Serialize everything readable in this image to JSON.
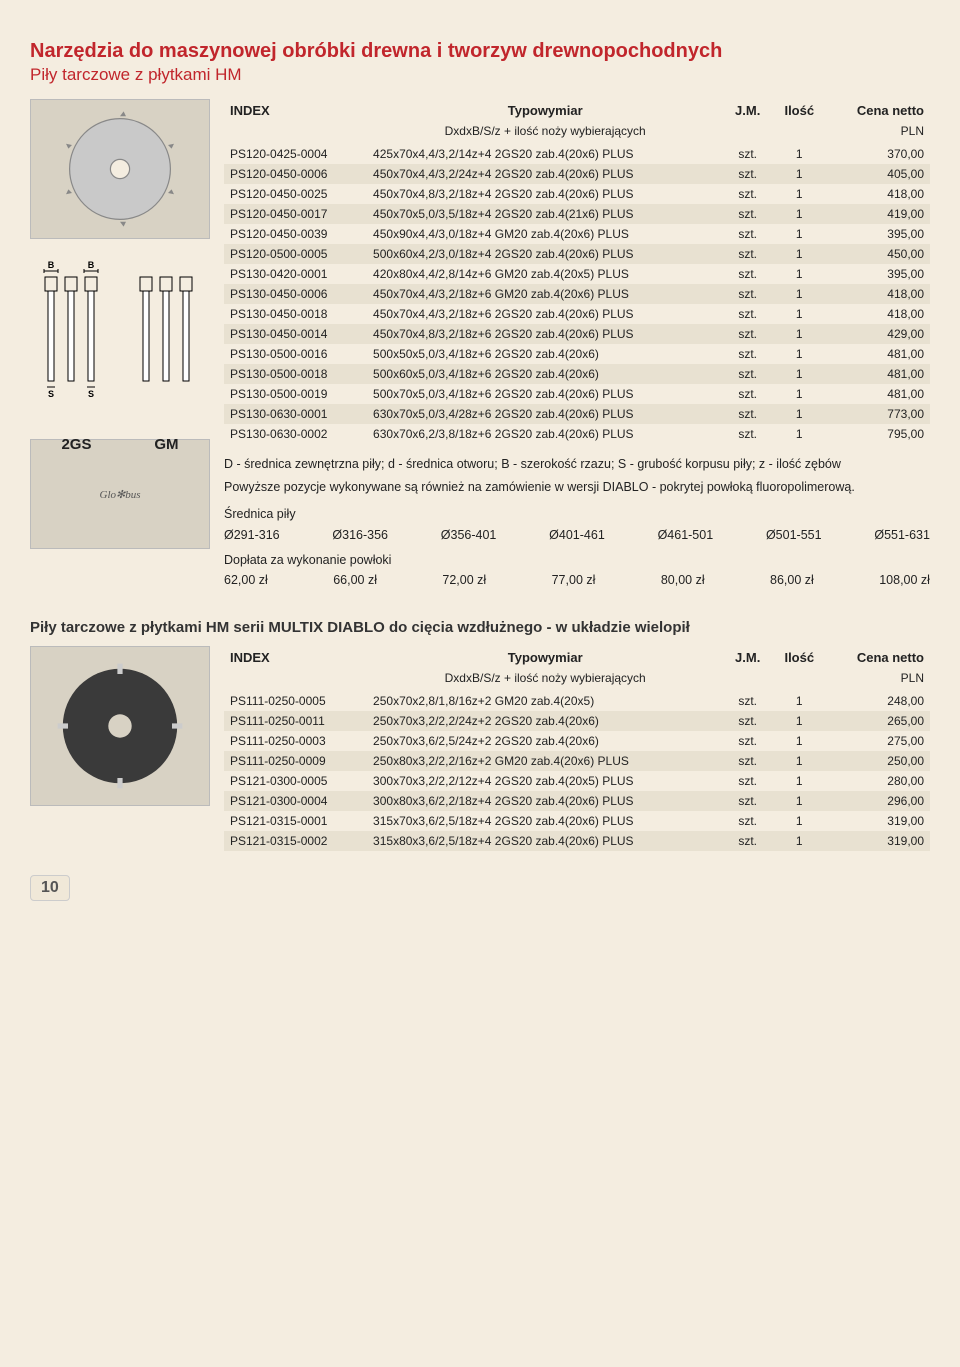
{
  "header": {
    "title": "Narzędzia do maszynowej obróbki drewna i tworzyw drewnopochodnych",
    "subtitle": "Piły tarczowe z płytkami HM"
  },
  "colors": {
    "heading": "#c1262c",
    "row_alt": "#e8e1d1",
    "page_bg": "#f4ede0"
  },
  "table_headers": {
    "index": "INDEX",
    "type": "Typowymiar",
    "jm": "J.M.",
    "qty": "Ilość",
    "price": "Cena netto",
    "sub_type": "DxdxB/S/z + ilość noży wybierających",
    "sub_price": "PLN"
  },
  "diagram": {
    "left_label": "2GS",
    "right_label": "GM",
    "b": "B",
    "s": "S"
  },
  "table1": {
    "rows": [
      {
        "idx": "PS120-0425-0004",
        "spec": "425x70x4,4/3,2/14z+4 2GS20 zab.4(20x6) PLUS",
        "jm": "szt.",
        "qty": "1",
        "price": "370,00"
      },
      {
        "idx": "PS120-0450-0006",
        "spec": "450x70x4,4/3,2/24z+4 2GS20 zab.4(20x6) PLUS",
        "jm": "szt.",
        "qty": "1",
        "price": "405,00"
      },
      {
        "idx": "PS120-0450-0025",
        "spec": "450x70x4,8/3,2/18z+4 2GS20 zab.4(20x6) PLUS",
        "jm": "szt.",
        "qty": "1",
        "price": "418,00"
      },
      {
        "idx": "PS120-0450-0017",
        "spec": "450x70x5,0/3,5/18z+4 2GS20 zab.4(21x6) PLUS",
        "jm": "szt.",
        "qty": "1",
        "price": "419,00"
      },
      {
        "idx": "PS120-0450-0039",
        "spec": "450x90x4,4/3,0/18z+4 GM20 zab.4(20x6) PLUS",
        "jm": "szt.",
        "qty": "1",
        "price": "395,00"
      },
      {
        "idx": "PS120-0500-0005",
        "spec": "500x60x4,2/3,0/18z+4 2GS20 zab.4(20x6) PLUS",
        "jm": "szt.",
        "qty": "1",
        "price": "450,00"
      },
      {
        "idx": "PS130-0420-0001",
        "spec": "420x80x4,4/2,8/14z+6 GM20 zab.4(20x5) PLUS",
        "jm": "szt.",
        "qty": "1",
        "price": "395,00"
      },
      {
        "idx": "PS130-0450-0006",
        "spec": "450x70x4,4/3,2/18z+6 GM20 zab.4(20x6) PLUS",
        "jm": "szt.",
        "qty": "1",
        "price": "418,00"
      },
      {
        "idx": "PS130-0450-0018",
        "spec": "450x70x4,4/3,2/18z+6 2GS20 zab.4(20x6) PLUS",
        "jm": "szt.",
        "qty": "1",
        "price": "418,00"
      },
      {
        "idx": "PS130-0450-0014",
        "spec": "450x70x4,8/3,2/18z+6 2GS20 zab.4(20x6) PLUS",
        "jm": "szt.",
        "qty": "1",
        "price": "429,00"
      },
      {
        "idx": "PS130-0500-0016",
        "spec": "500x50x5,0/3,4/18z+6 2GS20 zab.4(20x6)",
        "jm": "szt.",
        "qty": "1",
        "price": "481,00"
      },
      {
        "idx": "PS130-0500-0018",
        "spec": "500x60x5,0/3,4/18z+6 2GS20 zab.4(20x6)",
        "jm": "szt.",
        "qty": "1",
        "price": "481,00"
      },
      {
        "idx": "PS130-0500-0019",
        "spec": "500x70x5,0/3,4/18z+6 2GS20 zab.4(20x6) PLUS",
        "jm": "szt.",
        "qty": "1",
        "price": "481,00"
      },
      {
        "idx": "PS130-0630-0001",
        "spec": "630x70x5,0/3,4/28z+6 2GS20 zab.4(20x6) PLUS",
        "jm": "szt.",
        "qty": "1",
        "price": "773,00"
      },
      {
        "idx": "PS130-0630-0002",
        "spec": "630x70x6,2/3,8/18z+6 2GS20 zab.4(20x6) PLUS",
        "jm": "szt.",
        "qty": "1",
        "price": "795,00"
      }
    ]
  },
  "notes": {
    "legend": "D - średnica zewnętrzna piły; d - średnica otworu; B - szerokość rzazu; S - grubość korpusu piły; z - ilość zębów",
    "diablo_note": "Powyższe pozycje wykonywane są również na zamówienie w wersji DIABLO - pokrytej powłoką  fluoropolimerową.",
    "diameter_label": "Średnica piły",
    "surcharge_label": "Dopłata za wykonanie powłoki",
    "diameters": [
      "Ø291-316",
      "Ø316-356",
      "Ø356-401",
      "Ø401-461",
      "Ø461-501",
      "Ø501-551",
      "Ø551-631"
    ],
    "surcharges": [
      "62,00 zł",
      "66,00 zł",
      "72,00 zł",
      "77,00 zł",
      "80,00 zł",
      "86,00 zł",
      "108,00 zł"
    ]
  },
  "section2": {
    "title": "Piły tarczowe z płytkami HM serii MULTIX DIABLO do cięcia wzdłużnego - w układzie wielopił"
  },
  "table2": {
    "rows": [
      {
        "idx": "PS111-0250-0005",
        "spec": "250x70x2,8/1,8/16z+2 GM20 zab.4(20x5)",
        "jm": "szt.",
        "qty": "1",
        "price": "248,00"
      },
      {
        "idx": "PS111-0250-0011",
        "spec": "250x70x3,2/2,2/24z+2 2GS20 zab.4(20x6)",
        "jm": "szt.",
        "qty": "1",
        "price": "265,00"
      },
      {
        "idx": "PS111-0250-0003",
        "spec": "250x70x3,6/2,5/24z+2 2GS20 zab.4(20x6)",
        "jm": "szt.",
        "qty": "1",
        "price": "275,00"
      },
      {
        "idx": "PS111-0250-0009",
        "spec": "250x80x3,2/2,2/16z+2 GM20 zab.4(20x6) PLUS",
        "jm": "szt.",
        "qty": "1",
        "price": "250,00"
      },
      {
        "idx": "PS121-0300-0005",
        "spec": "300x70x3,2/2,2/12z+4 2GS20 zab.4(20x5) PLUS",
        "jm": "szt.",
        "qty": "1",
        "price": "280,00"
      },
      {
        "idx": "PS121-0300-0004",
        "spec": "300x80x3,6/2,2/18z+4 2GS20 zab.4(20x6) PLUS",
        "jm": "szt.",
        "qty": "1",
        "price": "296,00"
      },
      {
        "idx": "PS121-0315-0001",
        "spec": "315x70x3,6/2,5/18z+4 2GS20 zab.4(20x6) PLUS",
        "jm": "szt.",
        "qty": "1",
        "price": "319,00"
      },
      {
        "idx": "PS121-0315-0002",
        "spec": "315x80x3,6/2,5/18z+4 2GS20 zab.4(20x6) PLUS",
        "jm": "szt.",
        "qty": "1",
        "price": "319,00"
      }
    ]
  },
  "page_number": "10"
}
